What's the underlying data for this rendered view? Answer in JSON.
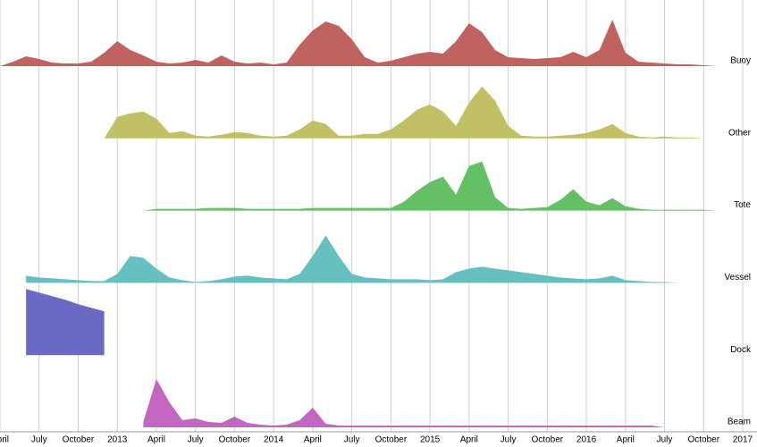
{
  "chart_data": {
    "type": "ridgeline",
    "x": [
      "2012-04",
      "2012-05",
      "2012-06",
      "2012-07",
      "2012-08",
      "2012-09",
      "2012-10",
      "2012-11",
      "2012-12",
      "2013-01",
      "2013-02",
      "2013-03",
      "2013-04",
      "2013-05",
      "2013-06",
      "2013-07",
      "2013-08",
      "2013-09",
      "2013-10",
      "2013-11",
      "2013-12",
      "2014-01",
      "2014-02",
      "2014-03",
      "2014-04",
      "2014-05",
      "2014-06",
      "2014-07",
      "2014-08",
      "2014-09",
      "2014-10",
      "2014-11",
      "2014-12",
      "2015-01",
      "2015-02",
      "2015-03",
      "2015-04",
      "2015-05",
      "2015-06",
      "2015-07",
      "2015-08",
      "2015-09",
      "2015-10",
      "2015-11",
      "2015-12",
      "2016-01",
      "2016-02",
      "2016-03",
      "2016-04",
      "2016-05",
      "2016-06",
      "2016-07",
      "2016-08",
      "2016-09",
      "2016-10",
      "2016-11"
    ],
    "xlim": [
      "2012-04",
      "2017-01"
    ],
    "xticks": [
      {
        "value": "2012-04",
        "label": "April"
      },
      {
        "value": "2012-07",
        "label": "July"
      },
      {
        "value": "2012-10",
        "label": "October"
      },
      {
        "value": "2013-01",
        "label": "2013"
      },
      {
        "value": "2013-04",
        "label": "April"
      },
      {
        "value": "2013-07",
        "label": "July"
      },
      {
        "value": "2013-10",
        "label": "October"
      },
      {
        "value": "2014-01",
        "label": "2014"
      },
      {
        "value": "2014-04",
        "label": "April"
      },
      {
        "value": "2014-07",
        "label": "July"
      },
      {
        "value": "2014-10",
        "label": "October"
      },
      {
        "value": "2015-01",
        "label": "2015"
      },
      {
        "value": "2015-04",
        "label": "April"
      },
      {
        "value": "2015-07",
        "label": "July"
      },
      {
        "value": "2015-10",
        "label": "October"
      },
      {
        "value": "2016-01",
        "label": "2016"
      },
      {
        "value": "2016-04",
        "label": "April"
      },
      {
        "value": "2016-07",
        "label": "July"
      },
      {
        "value": "2016-10",
        "label": "October"
      },
      {
        "value": "2017-01",
        "label": "2017"
      }
    ],
    "ylim": [
      0,
      80
    ],
    "grid": true,
    "series": [
      {
        "name": "Buoy",
        "color": "#c0625f",
        "values": [
          0,
          5,
          11,
          8,
          4,
          3,
          3,
          5,
          15,
          28,
          18,
          12,
          5,
          3,
          4,
          7,
          4,
          12,
          5,
          3,
          4,
          2,
          4,
          24,
          40,
          50,
          45,
          30,
          10,
          4,
          6,
          10,
          14,
          16,
          14,
          28,
          48,
          38,
          18,
          10,
          9,
          8,
          9,
          10,
          16,
          10,
          18,
          52,
          15,
          5,
          4,
          3,
          2,
          2,
          1,
          0
        ]
      },
      {
        "name": "Other",
        "color": "#c2c064",
        "values": [
          null,
          null,
          null,
          null,
          null,
          null,
          null,
          null,
          0,
          24,
          28,
          30,
          22,
          6,
          8,
          3,
          2,
          4,
          7,
          6,
          3,
          2,
          3,
          10,
          20,
          16,
          3,
          3,
          5,
          5,
          10,
          20,
          32,
          38,
          30,
          14,
          40,
          58,
          42,
          14,
          3,
          2,
          2,
          3,
          4,
          6,
          10,
          16,
          6,
          2,
          1,
          2,
          1,
          1,
          0,
          null
        ]
      },
      {
        "name": "Tote",
        "color": "#64c064",
        "values": [
          null,
          null,
          null,
          null,
          null,
          null,
          null,
          null,
          null,
          null,
          null,
          0,
          2,
          2,
          2,
          2,
          3,
          3,
          3,
          2,
          2,
          2,
          2,
          2,
          3,
          3,
          3,
          3,
          3,
          3,
          3,
          10,
          22,
          32,
          38,
          18,
          50,
          55,
          15,
          3,
          2,
          3,
          4,
          12,
          24,
          10,
          6,
          14,
          5,
          2,
          1,
          1,
          1,
          1,
          1,
          0
        ]
      },
      {
        "name": "Vessel",
        "color": "#66c0c0",
        "values": [
          null,
          null,
          8,
          6,
          5,
          4,
          3,
          2,
          2,
          10,
          30,
          28,
          16,
          6,
          3,
          1,
          2,
          4,
          7,
          8,
          6,
          5,
          4,
          10,
          30,
          53,
          30,
          10,
          6,
          5,
          4,
          4,
          4,
          3,
          4,
          12,
          16,
          18,
          16,
          14,
          12,
          10,
          8,
          6,
          5,
          4,
          5,
          8,
          3,
          2,
          1,
          1,
          0,
          null,
          null,
          null
        ]
      },
      {
        "name": "Dock",
        "color": "#6a6ac4",
        "values": [
          null,
          null,
          74,
          70,
          66,
          62,
          57,
          53,
          49,
          null,
          null,
          null,
          null,
          null,
          null,
          null,
          null,
          null,
          null,
          null,
          null,
          null,
          null,
          null,
          null,
          null,
          null,
          null,
          null,
          null,
          null,
          null,
          null,
          null,
          null,
          null,
          null,
          null,
          null,
          null,
          null,
          null,
          null,
          null,
          null,
          null,
          null,
          null,
          null,
          null,
          null,
          null,
          null,
          null,
          null,
          null
        ]
      },
      {
        "name": "Beam",
        "color": "#c266c0",
        "values": [
          null,
          null,
          null,
          null,
          null,
          null,
          null,
          null,
          null,
          null,
          null,
          6,
          54,
          28,
          8,
          10,
          6,
          5,
          12,
          5,
          3,
          2,
          3,
          8,
          22,
          4,
          2,
          2,
          2,
          2,
          2,
          2,
          2,
          2,
          2,
          2,
          2,
          2,
          2,
          2,
          2,
          2,
          2,
          2,
          2,
          2,
          2,
          2,
          2,
          2,
          2,
          0,
          null,
          null,
          null,
          null
        ]
      }
    ]
  }
}
